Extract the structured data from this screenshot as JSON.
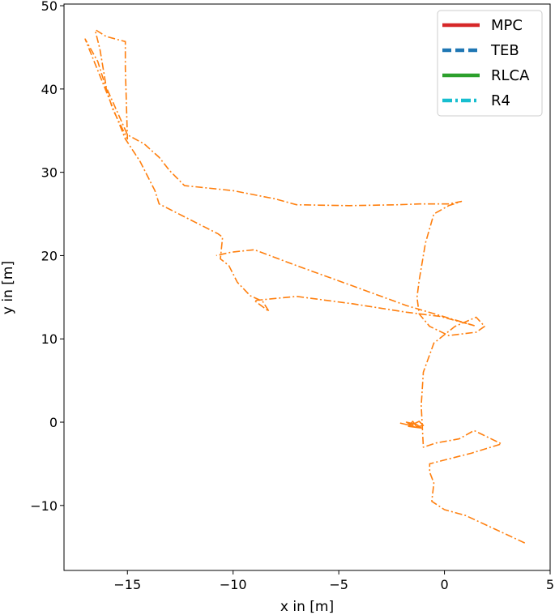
{
  "chart_data": {
    "type": "line",
    "title": "",
    "xlabel": "x in [m]",
    "ylabel": "y in [m]",
    "xlim": [
      -18.0,
      5.0
    ],
    "ylim": [
      -17.8,
      50.2
    ],
    "xticks": [
      -15,
      -10,
      -5,
      0,
      5
    ],
    "yticks": [
      -10,
      0,
      10,
      20,
      30,
      40,
      50
    ],
    "xtick_labels": [
      "−15",
      "−10",
      "−5",
      "0",
      "5"
    ],
    "ytick_labels": [
      "−10",
      "0",
      "10",
      "20",
      "30",
      "40",
      "50"
    ],
    "grid": false,
    "legend_position": "top-right",
    "legend": [
      {
        "label": "MPC",
        "color": "#d62728",
        "style": "solid"
      },
      {
        "label": "TEB",
        "color": "#1f77b4",
        "style": "dashed"
      },
      {
        "label": "RLCA",
        "color": "#2ca02c",
        "style": "solid"
      },
      {
        "label": "R4",
        "color": "#17becf",
        "style": "dashdot"
      }
    ],
    "series": [
      {
        "name": "R4",
        "color": "#ff7f0e",
        "style": "dashdot",
        "x": [
          3.8,
          1.0,
          0.0,
          -0.6,
          -0.5,
          -0.7,
          -0.7,
          1.3,
          2.7,
          1.8,
          1.4,
          0.7,
          -0.4,
          -1.0,
          -1.1,
          -1.0,
          -0.5,
          0.5,
          1.5,
          1.9,
          1.5,
          0.2,
          -0.7,
          -1.2,
          -1.3,
          -1.2,
          -0.9,
          -0.5,
          0.2,
          0.8,
          0.2,
          -1.2,
          -2.2,
          -4.5,
          -7.0,
          -8.0,
          -10.0,
          -12.3,
          -13.0,
          -13.5,
          -14.2,
          -15.0,
          -15.4,
          -16.0,
          -16.3,
          -16.5,
          -16.5,
          -16.0,
          -15.1,
          -15.1,
          -15.0,
          -15.7,
          -16.4,
          -17.0,
          -15.1,
          -14.4,
          -13.7,
          -13.5,
          -10.7,
          -10.5,
          -10.6,
          -10.2,
          -9.8,
          -9.2,
          -8.6,
          -8.3,
          -9.0,
          -7.0,
          -4.3,
          -1.8,
          -0.2,
          1.4,
          -1.8,
          -4.5,
          -7.0,
          -9.0,
          -10.1,
          -10.8
        ],
        "y": [
          -14.5,
          -11.2,
          -10.5,
          -9.5,
          -7.3,
          -6.0,
          -5.0,
          -3.7,
          -2.6,
          -1.5,
          -1.0,
          -2.0,
          -2.5,
          -3.0,
          2.0,
          6.0,
          9.5,
          11.5,
          12.6,
          11.5,
          10.8,
          10.4,
          11.5,
          13.0,
          15.0,
          17.0,
          21.5,
          25.0,
          26.0,
          26.5,
          26.2,
          26.2,
          26.1,
          26.0,
          26.1,
          26.8,
          27.8,
          28.4,
          30.2,
          31.8,
          33.4,
          34.5,
          36.8,
          40.2,
          44.8,
          46.8,
          47.1,
          46.3,
          45.7,
          42.5,
          34.0,
          37.6,
          43.3,
          46.0,
          34.0,
          31.3,
          27.8,
          26.2,
          22.6,
          22.2,
          19.6,
          18.8,
          16.8,
          15.2,
          14.5,
          13.3,
          14.6,
          15.1,
          14.2,
          13.2,
          12.7,
          11.6,
          14.0,
          16.5,
          18.8,
          20.7,
          20.4,
          20.0
        ]
      },
      {
        "name": "R4",
        "color": "#ff7f0e",
        "style": "solid",
        "x": [
          -2.1,
          -1.6,
          -1.2,
          -1.0,
          -1.4,
          -1.8,
          -1.3,
          -1.1,
          -1.7,
          -1.5,
          -1.3
        ],
        "y": [
          -0.1,
          -0.4,
          0.1,
          -0.4,
          -0.6,
          0.0,
          -0.3,
          -0.7,
          -0.5,
          0.1,
          -0.6
        ]
      }
    ]
  }
}
